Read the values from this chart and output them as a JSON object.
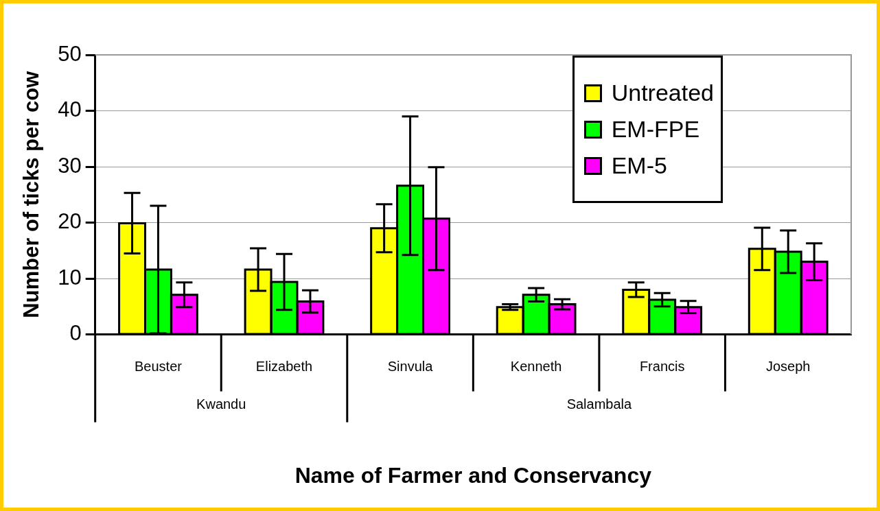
{
  "chart_data": {
    "type": "bar",
    "xlabel": "Name of Farmer and Conservancy",
    "ylabel": "Number of ticks per cow",
    "categories": [
      "Beuster",
      "Elizabeth",
      "Sinvula",
      "Kenneth",
      "Francis",
      "Joseph"
    ],
    "series": [
      {
        "name": "Untreated",
        "color": "#ffff00",
        "values": [
          19.9,
          11.6,
          19.0,
          4.9,
          8.0,
          15.3
        ],
        "errors": [
          5.4,
          3.8,
          4.3,
          0.5,
          1.3,
          3.8
        ]
      },
      {
        "name": "EM-FPE",
        "color": "#00ff00",
        "values": [
          11.6,
          9.4,
          26.6,
          7.1,
          6.2,
          14.8
        ],
        "errors": [
          11.4,
          5.0,
          12.4,
          1.2,
          1.2,
          3.8
        ]
      },
      {
        "name": "EM-5",
        "color": "#ff00ff",
        "values": [
          7.1,
          5.9,
          20.7,
          5.4,
          4.9,
          13.0
        ],
        "errors": [
          2.2,
          2.0,
          9.2,
          0.9,
          1.1,
          3.3
        ]
      }
    ],
    "annotations": [
      "Kwandu",
      "Salambala"
    ],
    "ylim": [
      0,
      50
    ],
    "yticks": [
      0,
      10,
      20,
      30,
      40,
      50
    ],
    "grid": "y",
    "legend": "top right"
  }
}
